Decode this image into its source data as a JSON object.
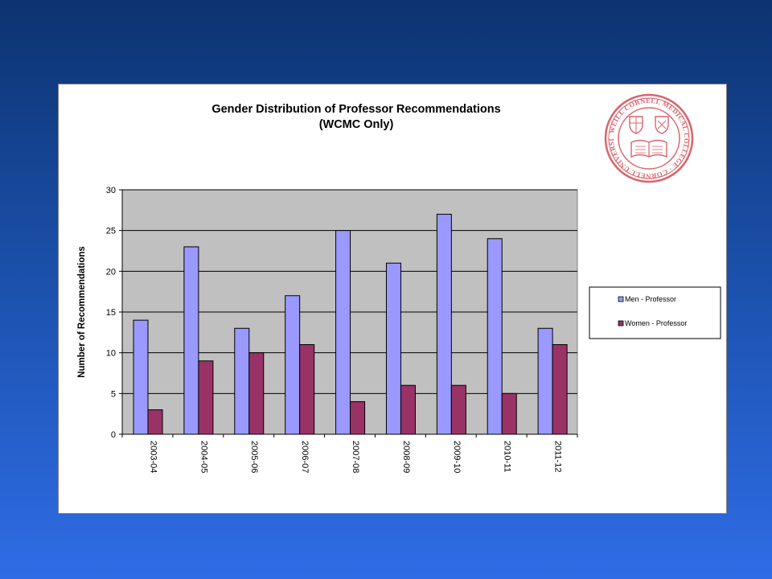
{
  "chart_data": {
    "type": "bar",
    "title": "Gender Distribution  of Professor Recommendations",
    "subtitle": "(WCMC Only)",
    "ylabel": "Number of Recommendations",
    "xlabel": "",
    "categories": [
      "2003-04",
      "2004-05",
      "2005-06",
      "2006-07",
      "2007-08",
      "2008-09",
      "2009-10",
      "2010-11",
      "2011-12"
    ],
    "series": [
      {
        "name": "Men - Professor",
        "values": [
          14,
          23,
          13,
          17,
          25,
          21,
          27,
          24,
          13
        ],
        "color": "#9999ff"
      },
      {
        "name": "Women - Professor",
        "values": [
          3,
          9,
          10,
          11,
          4,
          6,
          6,
          5,
          11
        ],
        "color": "#993366"
      }
    ],
    "ylim": [
      0,
      30
    ],
    "yticks": [
      0,
      5,
      10,
      15,
      20,
      25,
      30
    ],
    "grid": true,
    "plot_background": "#c0c0c0",
    "legend_position": "right"
  },
  "logo": {
    "name": "cornell-seal",
    "color": "#d9646c",
    "ring_text": "WEILL CORNELL MEDICAL COLLEGE · CORNELL UNIVERSITY ·"
  },
  "colors": {
    "background_top": "#0d3370",
    "background_bottom": "#2f6de6"
  }
}
